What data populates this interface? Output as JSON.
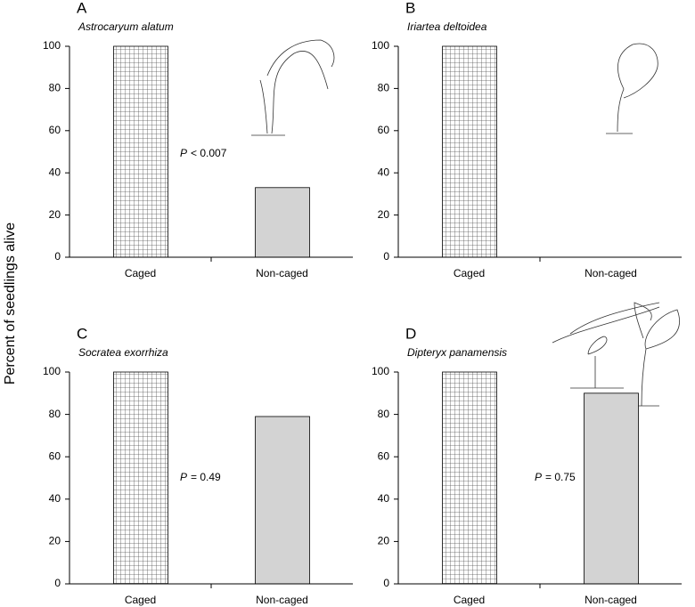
{
  "ylabel": "Percent of seedlings alive",
  "chart_data": [
    {
      "type": "bar",
      "panel": "A",
      "title": "Astrocaryum alatum",
      "categories": [
        "Caged",
        "Non-caged"
      ],
      "values": [
        100,
        33
      ],
      "color": "#d3d3d3",
      "ylim": [
        0,
        100
      ],
      "yticks": [
        0,
        20,
        40,
        60,
        80,
        100
      ],
      "annotation_label": "P",
      "annotation": "< 0.007"
    },
    {
      "type": "bar",
      "panel": "B",
      "title": "Iriartea deltoidea",
      "categories": [
        "Caged",
        "Non-caged"
      ],
      "values": [
        100,
        0
      ],
      "color": "#d3d3d3",
      "ylim": [
        0,
        100
      ],
      "yticks": [
        0,
        20,
        40,
        60,
        80,
        100
      ]
    },
    {
      "type": "bar",
      "panel": "C",
      "title": "Socratea exorrhiza",
      "categories": [
        "Caged",
        "Non-caged"
      ],
      "values": [
        100,
        79
      ],
      "color": "#d3d3d3",
      "ylim": [
        0,
        100
      ],
      "yticks": [
        0,
        20,
        40,
        60,
        80,
        100
      ],
      "annotation_label": "P",
      "annotation": "= 0.49"
    },
    {
      "type": "bar",
      "panel": "D",
      "title": "Dipteryx panamensis",
      "categories": [
        "Caged",
        "Non-caged"
      ],
      "values": [
        100,
        90
      ],
      "color": "#d3d3d3",
      "ylim": [
        0,
        100
      ],
      "yticks": [
        0,
        20,
        40,
        60,
        80,
        100
      ],
      "annotation_label": "P",
      "annotation": "= 0.75"
    }
  ]
}
